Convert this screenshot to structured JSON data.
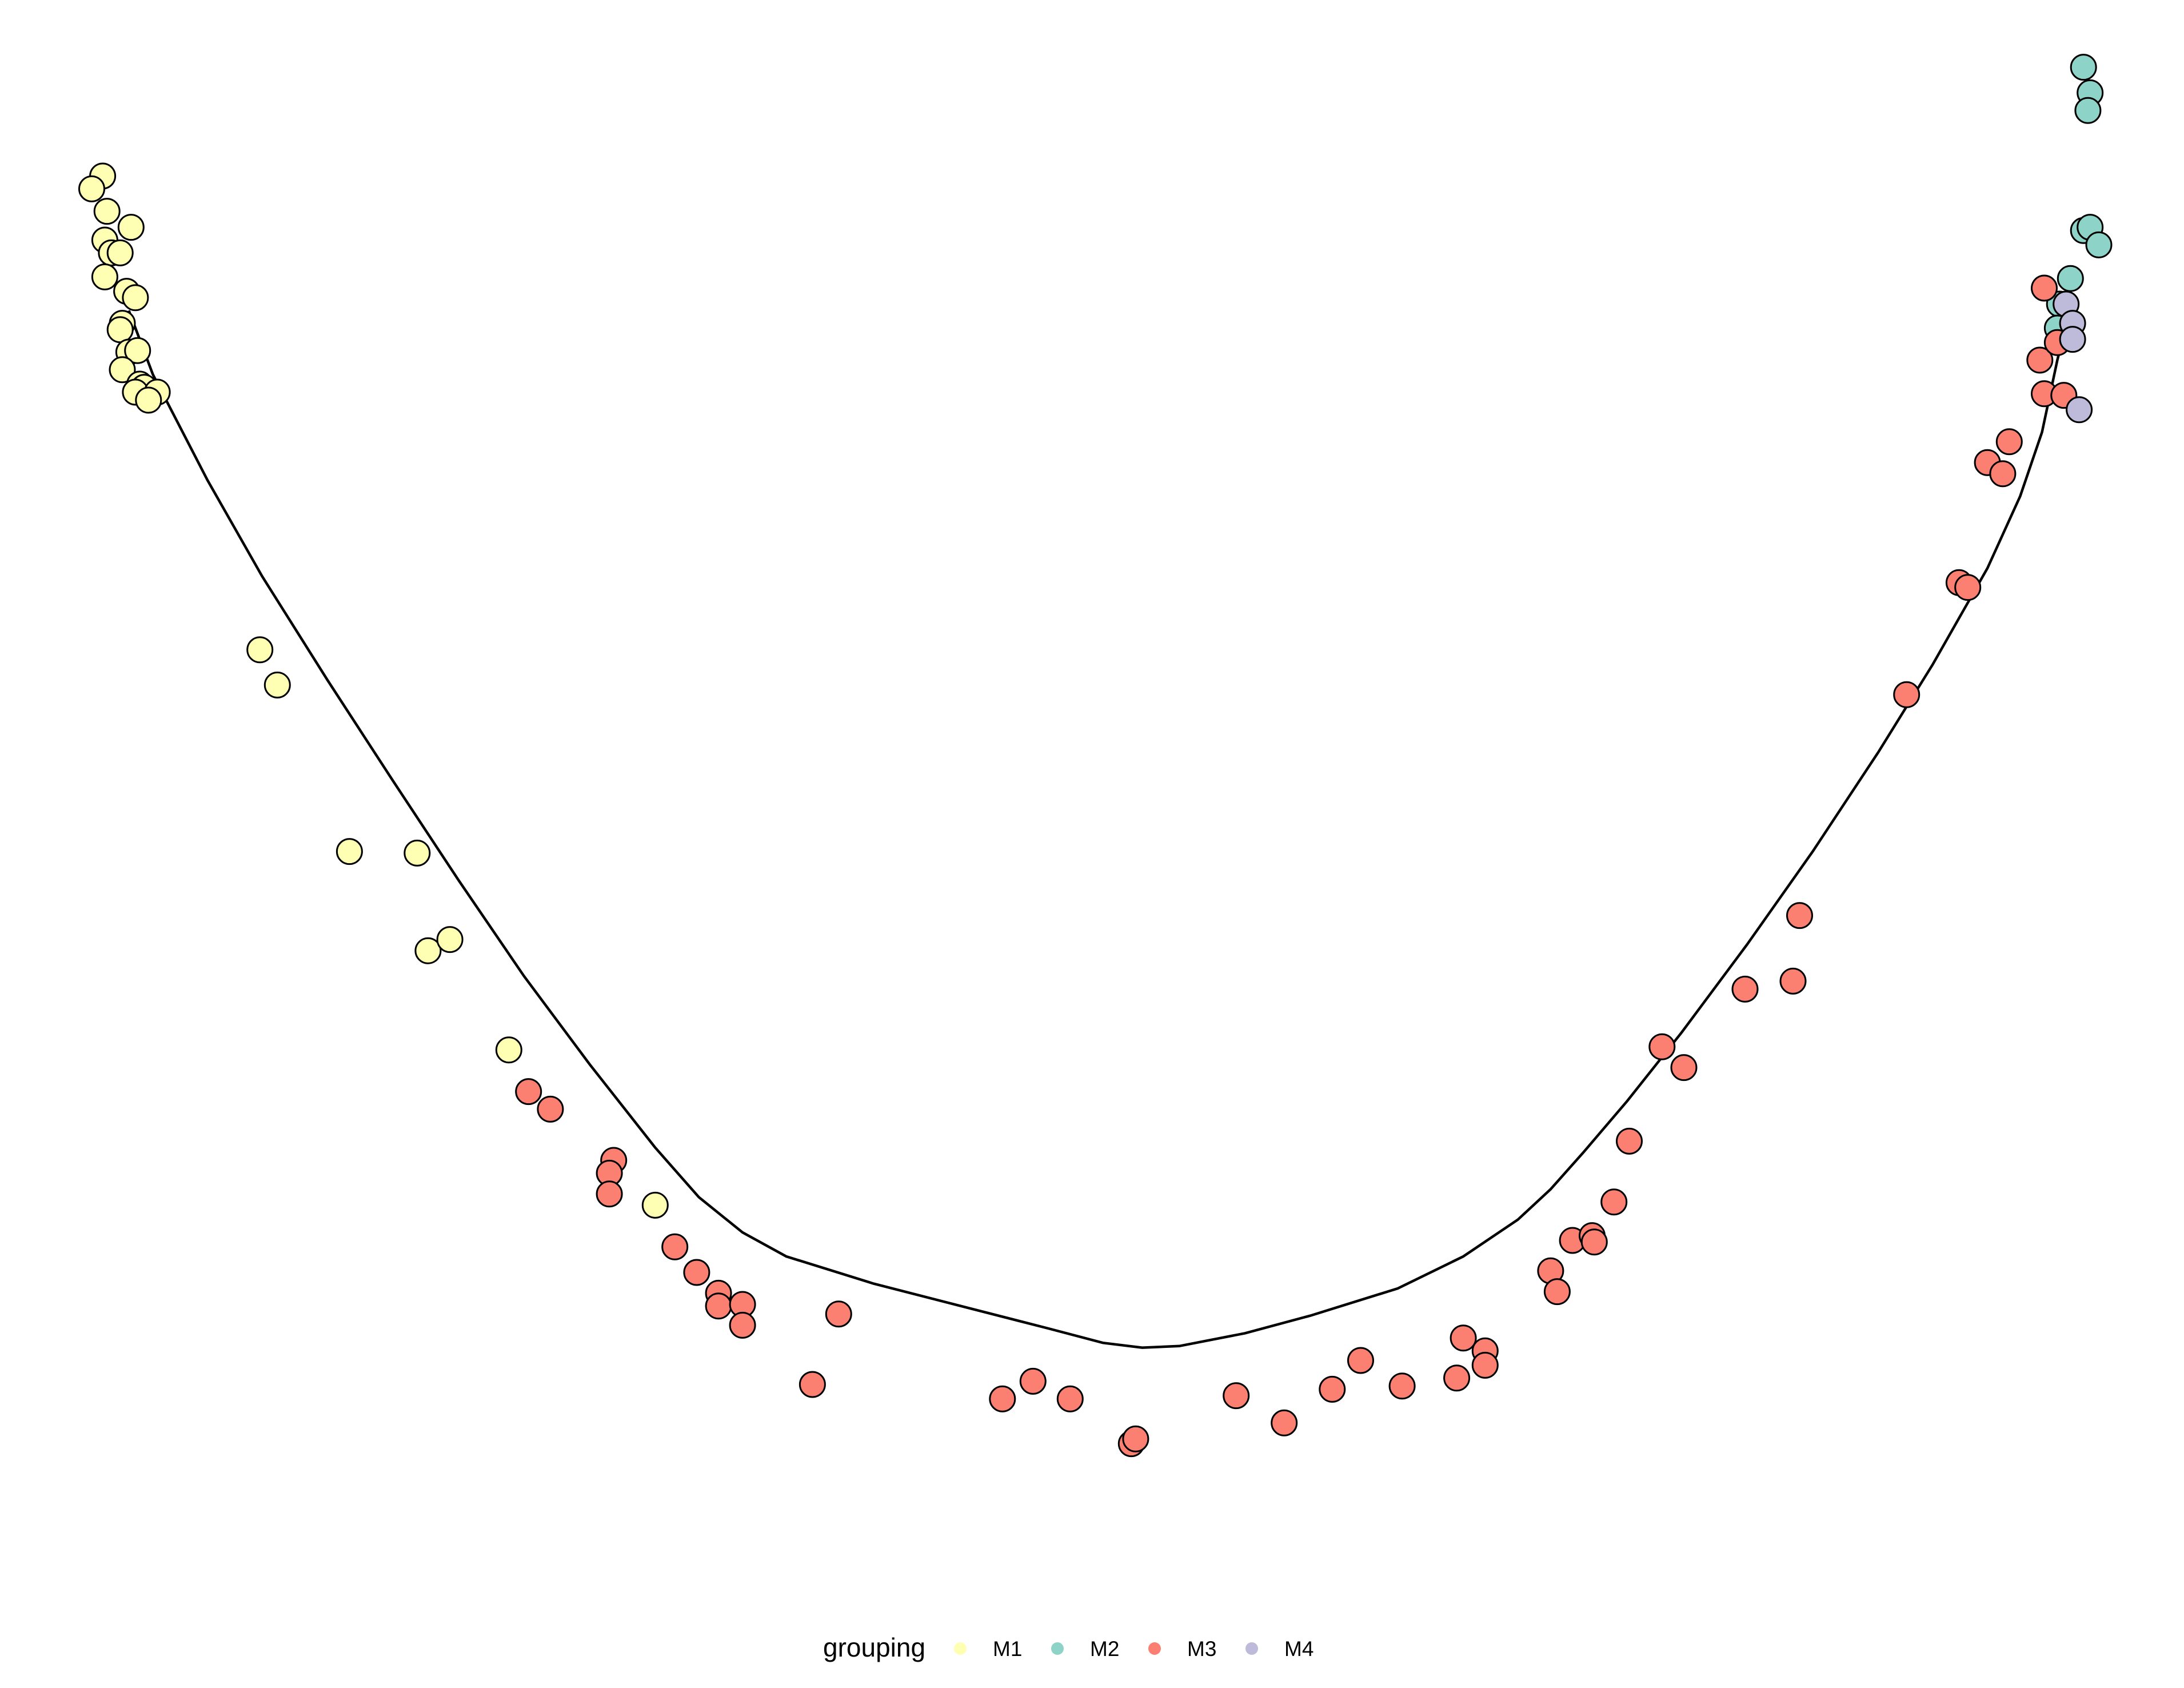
{
  "chart_data": {
    "type": "scatter",
    "title": "",
    "xlabel": "",
    "ylabel": "",
    "xlim": [
      0,
      100
    ],
    "ylim": [
      0,
      100
    ],
    "grid": false,
    "axes_visible": false,
    "legend": {
      "title": "grouping",
      "position": "bottom",
      "entries": [
        {
          "label": "M1",
          "color": "#FFFFB3"
        },
        {
          "label": "M2",
          "color": "#8DD3C7"
        },
        {
          "label": "M3",
          "color": "#FB8072"
        },
        {
          "label": "M4",
          "color": "#BEBADA"
        }
      ]
    },
    "series": [
      {
        "name": "M1",
        "color": "#FFFFB3",
        "points": [
          [
            4.7,
            89.0
          ],
          [
            4.2,
            88.2
          ],
          [
            4.9,
            86.8
          ],
          [
            6.0,
            85.8
          ],
          [
            4.8,
            85.0
          ],
          [
            5.1,
            84.2
          ],
          [
            5.5,
            84.2
          ],
          [
            4.8,
            82.7
          ],
          [
            5.8,
            81.8
          ],
          [
            6.2,
            81.4
          ],
          [
            5.6,
            79.8
          ],
          [
            5.5,
            79.4
          ],
          [
            5.9,
            78.0
          ],
          [
            6.3,
            78.1
          ],
          [
            5.6,
            76.9
          ],
          [
            6.4,
            76.0
          ],
          [
            6.6,
            75.8
          ],
          [
            6.2,
            75.5
          ],
          [
            7.2,
            75.5
          ],
          [
            6.8,
            75.0
          ],
          [
            11.9,
            59.4
          ],
          [
            12.7,
            57.2
          ],
          [
            16.0,
            46.8
          ],
          [
            19.1,
            46.7
          ],
          [
            19.6,
            40.6
          ],
          [
            20.6,
            41.3
          ],
          [
            23.3,
            34.4
          ],
          [
            30.0,
            24.7
          ]
        ]
      },
      {
        "name": "M2",
        "color": "#8DD3C7",
        "points": [
          [
            95.4,
            95.8
          ],
          [
            95.7,
            94.2
          ],
          [
            95.6,
            93.1
          ],
          [
            95.4,
            85.6
          ],
          [
            95.7,
            85.8
          ],
          [
            96.1,
            84.7
          ],
          [
            94.8,
            82.6
          ],
          [
            94.3,
            81.0
          ],
          [
            94.2,
            79.5
          ]
        ]
      },
      {
        "name": "M3",
        "color": "#FB8072",
        "points": [
          [
            24.2,
            31.8
          ],
          [
            25.2,
            30.7
          ],
          [
            28.1,
            27.5
          ],
          [
            27.9,
            26.7
          ],
          [
            27.9,
            25.4
          ],
          [
            30.9,
            22.1
          ],
          [
            31.9,
            20.5
          ],
          [
            32.9,
            19.2
          ],
          [
            32.9,
            18.4
          ],
          [
            34.0,
            18.5
          ],
          [
            34.0,
            17.2
          ],
          [
            38.4,
            17.9
          ],
          [
            37.2,
            13.5
          ],
          [
            45.9,
            12.6
          ],
          [
            47.3,
            13.7
          ],
          [
            49.0,
            12.6
          ],
          [
            51.8,
            9.8
          ],
          [
            52.0,
            10.1
          ],
          [
            56.6,
            12.8
          ],
          [
            58.8,
            11.1
          ],
          [
            61.0,
            13.2
          ],
          [
            62.3,
            15.0
          ],
          [
            64.2,
            13.4
          ],
          [
            66.7,
            13.9
          ],
          [
            67.0,
            16.4
          ],
          [
            68.0,
            15.6
          ],
          [
            68.0,
            14.7
          ],
          [
            71.0,
            20.6
          ],
          [
            71.3,
            19.3
          ],
          [
            72.0,
            22.5
          ],
          [
            72.9,
            22.8
          ],
          [
            73.0,
            22.4
          ],
          [
            73.9,
            24.9
          ],
          [
            74.6,
            28.7
          ],
          [
            76.1,
            34.6
          ],
          [
            77.1,
            33.3
          ],
          [
            79.9,
            38.2
          ],
          [
            82.1,
            38.7
          ],
          [
            82.4,
            42.8
          ],
          [
            87.3,
            56.6
          ],
          [
            89.7,
            63.6
          ],
          [
            90.1,
            63.3
          ],
          [
            91.0,
            71.1
          ],
          [
            91.7,
            70.4
          ],
          [
            92.0,
            72.4
          ],
          [
            93.4,
            77.5
          ],
          [
            93.6,
            75.4
          ],
          [
            94.5,
            75.3
          ],
          [
            93.6,
            82.0
          ],
          [
            94.2,
            78.6
          ]
        ]
      },
      {
        "name": "M4",
        "color": "#BEBADA",
        "points": [
          [
            94.6,
            81.0
          ],
          [
            94.9,
            79.8
          ],
          [
            94.9,
            78.8
          ],
          [
            95.2,
            74.4
          ]
        ]
      }
    ],
    "trajectory": [
      [
        5.9,
        80.6
      ],
      [
        7.0,
        76.6
      ],
      [
        9.5,
        70.0
      ],
      [
        12.0,
        64.0
      ],
      [
        15.0,
        57.5
      ],
      [
        18.0,
        51.2
      ],
      [
        21.0,
        45.0
      ],
      [
        24.0,
        39.0
      ],
      [
        27.0,
        33.5
      ],
      [
        30.0,
        28.3
      ],
      [
        32.0,
        25.2
      ],
      [
        34.0,
        23.0
      ],
      [
        36.0,
        21.5
      ],
      [
        40.0,
        19.8
      ],
      [
        44.0,
        18.4
      ],
      [
        48.0,
        17.0
      ],
      [
        50.5,
        16.1
      ],
      [
        52.3,
        15.8
      ],
      [
        54.0,
        15.9
      ],
      [
        57.0,
        16.7
      ],
      [
        60.0,
        17.8
      ],
      [
        64.0,
        19.5
      ],
      [
        67.0,
        21.5
      ],
      [
        69.5,
        23.8
      ],
      [
        71.0,
        25.7
      ],
      [
        72.5,
        28.0
      ],
      [
        74.5,
        31.2
      ],
      [
        77.0,
        35.5
      ],
      [
        80.0,
        41.0
      ],
      [
        83.0,
        46.8
      ],
      [
        86.0,
        53.0
      ],
      [
        88.5,
        58.5
      ],
      [
        91.0,
        64.5
      ],
      [
        92.5,
        69.0
      ],
      [
        93.5,
        73.0
      ],
      [
        94.2,
        77.5
      ],
      [
        94.7,
        80.2
      ]
    ]
  }
}
